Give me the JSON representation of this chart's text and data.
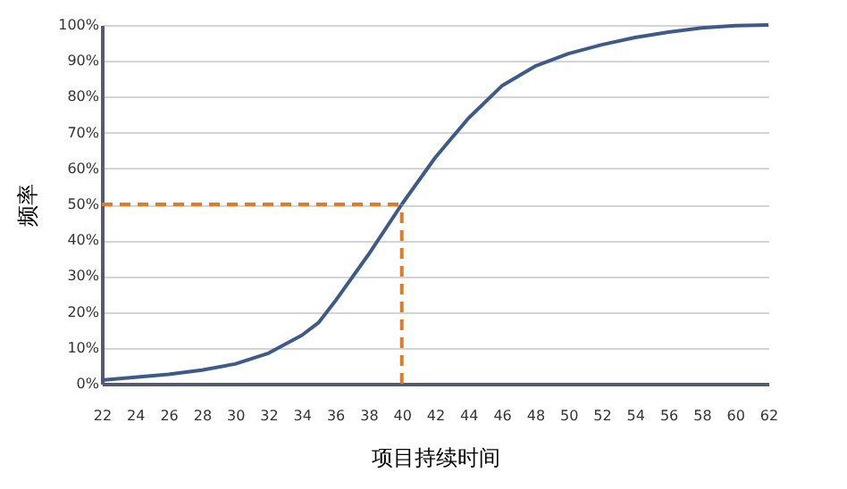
{
  "chart_data": {
    "type": "line",
    "xlabel": "项目持续时间",
    "ylabel": "频率",
    "x": [
      22,
      24,
      26,
      28,
      30,
      32,
      34,
      35,
      36,
      38,
      40,
      42,
      44,
      46,
      48,
      50,
      52,
      54,
      56,
      58,
      60,
      62
    ],
    "series": [
      {
        "color": "#3e5a8a",
        "values": [
          1,
          1.8,
          2.6,
          3.8,
          5.5,
          8.5,
          13.5,
          17,
          23,
          36,
          50,
          63,
          74,
          83,
          88.5,
          92,
          94.5,
          96.5,
          98,
          99.2,
          99.8,
          100
        ]
      }
    ],
    "xlim": [
      22,
      62
    ],
    "xticks": [
      22,
      24,
      26,
      28,
      30,
      32,
      34,
      36,
      38,
      40,
      42,
      44,
      46,
      48,
      50,
      52,
      54,
      56,
      58,
      60,
      62
    ],
    "ylim": [
      0,
      100
    ],
    "yticks": [
      {
        "value": 0,
        "label": "0%"
      },
      {
        "value": 10,
        "label": "10%"
      },
      {
        "value": 20,
        "label": "20%"
      },
      {
        "value": 30,
        "label": "30%"
      },
      {
        "value": 40,
        "label": "40%"
      },
      {
        "value": 50,
        "label": "50%"
      },
      {
        "value": 60,
        "label": "60%"
      },
      {
        "value": 70,
        "label": "70%"
      },
      {
        "value": 80,
        "label": "80%"
      },
      {
        "value": 90,
        "label": "90%"
      },
      {
        "value": 100,
        "label": "100%"
      }
    ],
    "ref_lines": [
      {
        "axis": "y",
        "value": 50,
        "color": "#e07b2a",
        "line_style": "dashed"
      },
      {
        "axis": "x",
        "value": 40,
        "color": "#e07b2a",
        "line_style": "dashed"
      }
    ],
    "grid": "y",
    "marker": "none",
    "line_style": "solid"
  }
}
